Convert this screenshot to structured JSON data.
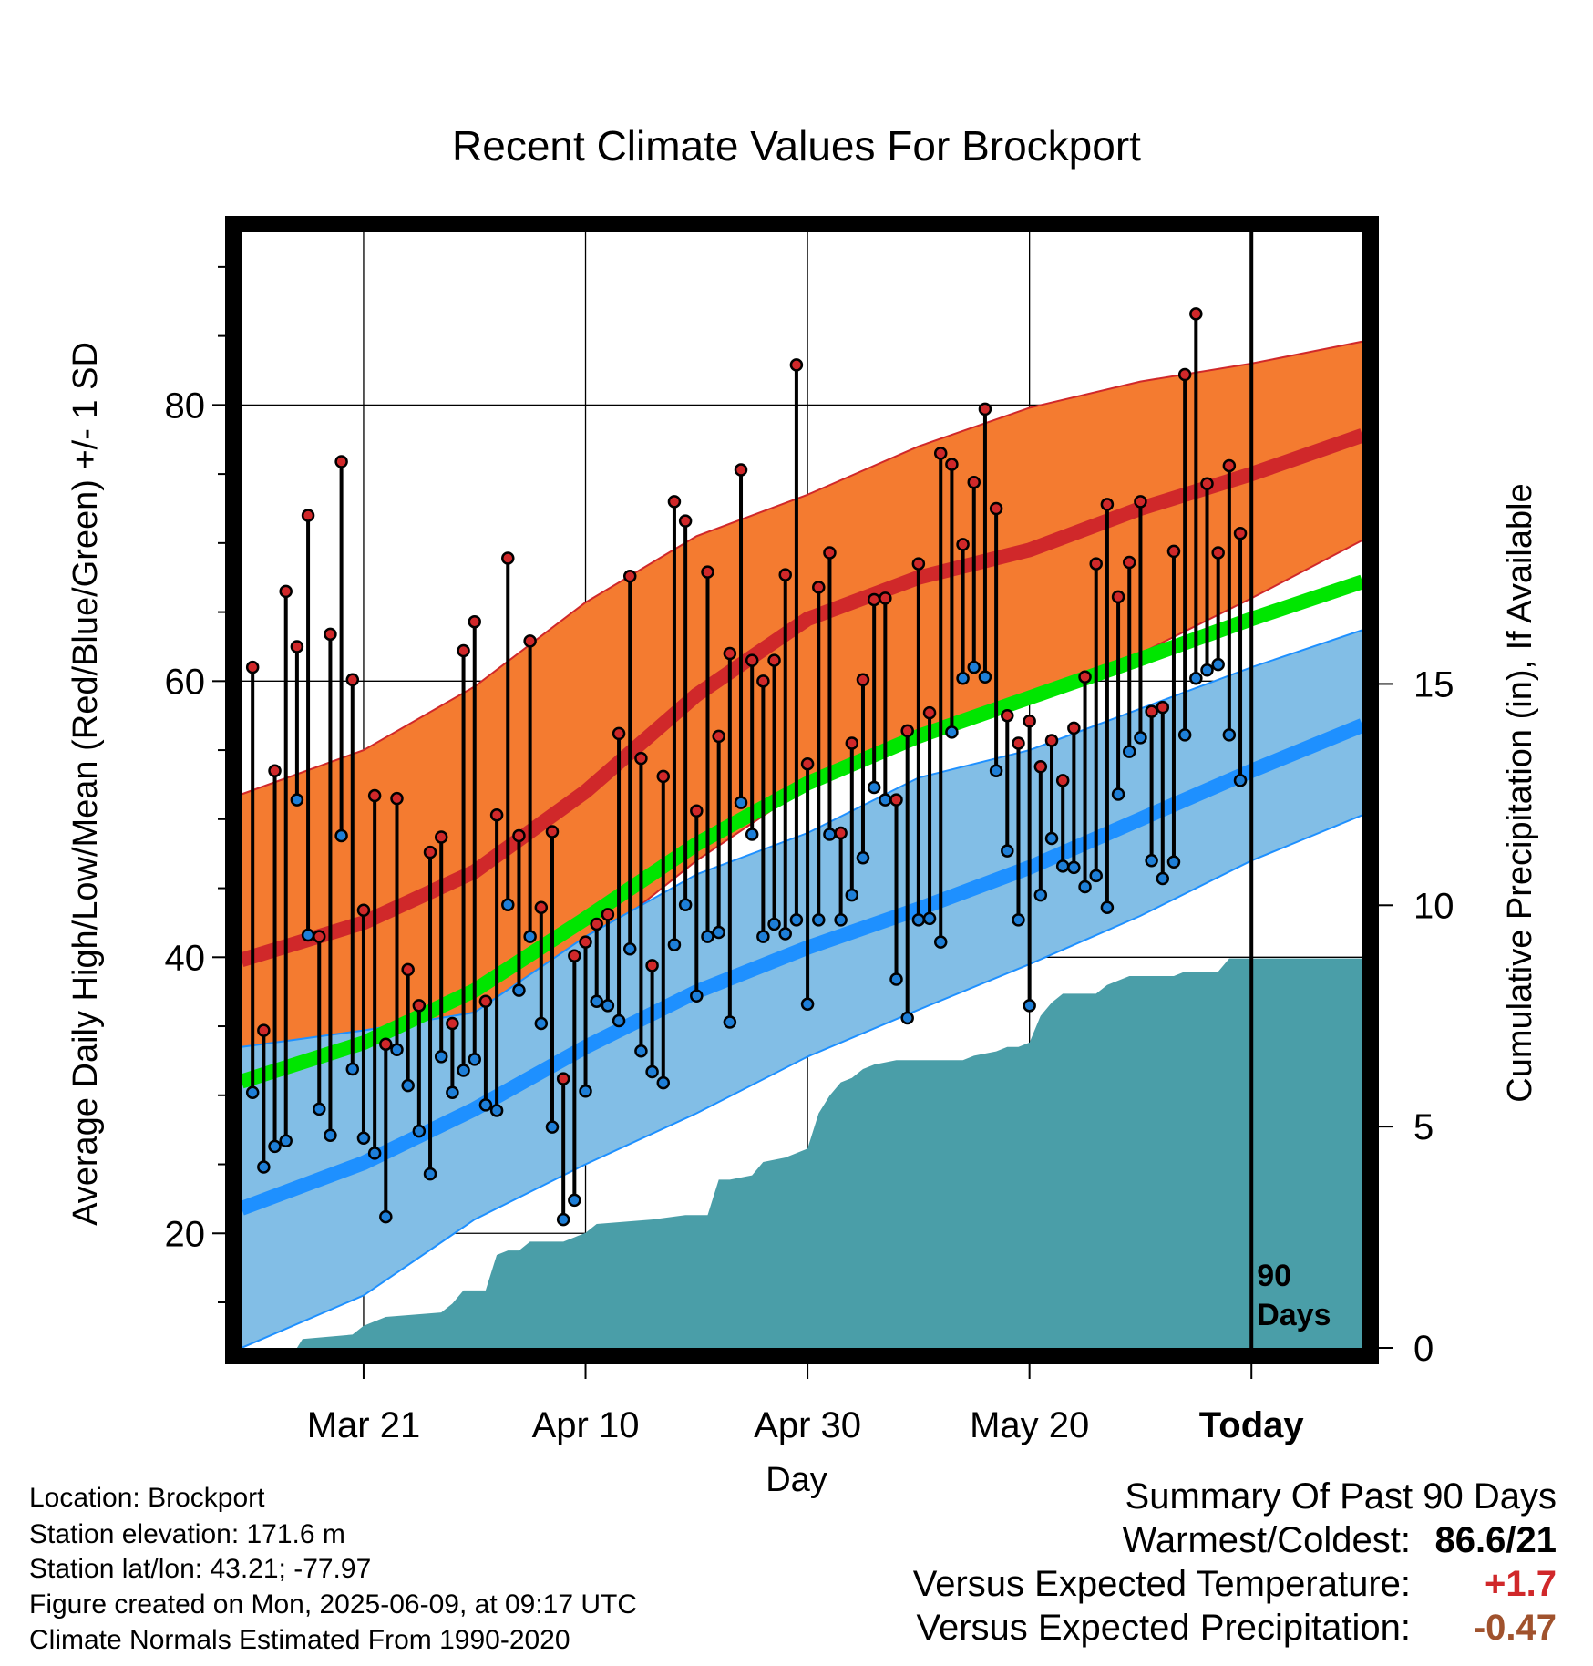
{
  "chart_data": {
    "type": "line",
    "title": "Recent Climate Values For Brockport",
    "xlabel": "Day",
    "ylabel": "Average Daily High/Low/Mean (Red/Blue/Green) +/- 1 SD",
    "y2label": "Cumulative Precipitation (in), If Available",
    "x_tick_labels": [
      "Mar 21",
      "Apr 10",
      "Apr 30",
      "May 20",
      "Today"
    ],
    "x_tick_days": [
      10,
      30,
      50,
      70,
      90
    ],
    "x_range_days": [
      -1,
      100
    ],
    "ylim": [
      11.7,
      92.5
    ],
    "y_ticks": [
      20,
      40,
      60,
      80
    ],
    "y2lim": [
      0,
      25.2
    ],
    "y2_ticks": [
      0,
      5,
      10,
      15
    ],
    "today_marker": "90\nDays",
    "today_label_line1": "90",
    "today_label_line2": "Days",
    "grid": true,
    "colors": {
      "high_band": "#f47b30",
      "high_mean": "#d0282a",
      "low_band": "#82bee6",
      "low_mean": "#1e90ff",
      "mean_normal": "#00e600",
      "precip": "#4a9ea8",
      "high_point": "#d0282a",
      "low_point": "#1e7fd8"
    },
    "normal_high_mean": [
      [
        -1,
        39.8
      ],
      [
        10,
        42.5
      ],
      [
        20,
        46.2
      ],
      [
        30,
        52
      ],
      [
        40,
        59
      ],
      [
        50,
        64.5
      ],
      [
        60,
        67.5
      ],
      [
        70,
        69.5
      ],
      [
        80,
        72.5
      ],
      [
        90,
        75
      ],
      [
        100,
        77.8
      ]
    ],
    "normal_high_upper": [
      [
        -1,
        51.8
      ],
      [
        10,
        55
      ],
      [
        20,
        59.6
      ],
      [
        30,
        65.7
      ],
      [
        40,
        70.5
      ],
      [
        50,
        73.5
      ],
      [
        60,
        77
      ],
      [
        70,
        79.8
      ],
      [
        80,
        81.7
      ],
      [
        90,
        83
      ],
      [
        100,
        84.6
      ]
    ],
    "normal_high_lower": [
      [
        -1,
        28.7
      ],
      [
        10,
        32.5
      ],
      [
        20,
        35.4
      ],
      [
        30,
        40.6
      ],
      [
        40,
        47
      ],
      [
        50,
        52.4
      ],
      [
        60,
        55.5
      ],
      [
        70,
        58.8
      ],
      [
        80,
        62
      ],
      [
        90,
        66
      ],
      [
        100,
        70.2
      ]
    ],
    "normal_low_mean": [
      [
        -1,
        21.8
      ],
      [
        10,
        25.1
      ],
      [
        20,
        29
      ],
      [
        30,
        33.5
      ],
      [
        40,
        37.5
      ],
      [
        50,
        40.7
      ],
      [
        60,
        43.5
      ],
      [
        70,
        46.5
      ],
      [
        80,
        50
      ],
      [
        90,
        53.5
      ],
      [
        100,
        56.8
      ]
    ],
    "normal_low_upper": [
      [
        -1,
        33.5
      ],
      [
        10,
        34.7
      ],
      [
        20,
        36
      ],
      [
        30,
        41.5
      ],
      [
        40,
        46
      ],
      [
        50,
        49
      ],
      [
        60,
        53
      ],
      [
        70,
        55
      ],
      [
        80,
        58
      ],
      [
        90,
        61
      ],
      [
        100,
        63.7
      ]
    ],
    "normal_low_lower": [
      [
        -1,
        11.7
      ],
      [
        10,
        15.5
      ],
      [
        20,
        21
      ],
      [
        30,
        25
      ],
      [
        40,
        28.7
      ],
      [
        50,
        32.8
      ],
      [
        60,
        36.2
      ],
      [
        70,
        39.5
      ],
      [
        80,
        43
      ],
      [
        90,
        47
      ],
      [
        100,
        50.3
      ]
    ],
    "normal_mean": [
      [
        -1,
        31
      ],
      [
        10,
        33.8
      ],
      [
        20,
        37.6
      ],
      [
        30,
        42.8
      ],
      [
        40,
        48.2
      ],
      [
        50,
        52.6
      ],
      [
        60,
        56
      ],
      [
        70,
        58.8
      ],
      [
        80,
        61.6
      ],
      [
        90,
        64.5
      ],
      [
        100,
        67.2
      ]
    ],
    "daily": {
      "high": [
        61,
        34.7,
        53.5,
        66.5,
        62.5,
        72,
        41.5,
        63.4,
        75.9,
        60.1,
        43.4,
        51.7,
        33.7,
        51.5,
        39.1,
        36.5,
        47.6,
        48.7,
        35.2,
        62.2,
        64.3,
        36.8,
        50.3,
        68.9,
        48.8,
        62.9,
        43.6,
        49.1,
        31.2,
        40.1,
        41.1,
        42.4,
        43.1,
        56.2,
        67.6,
        54.4,
        39.4,
        53.1,
        73,
        71.6,
        50.6,
        67.9,
        56,
        62,
        75.3,
        61.5,
        60,
        61.5,
        67.7,
        82.9,
        54,
        66.8,
        69.3,
        49,
        55.5,
        60.1,
        65.9,
        66,
        51.4,
        56.4,
        68.5,
        57.7,
        76.5,
        75.7,
        69.9,
        74.4,
        79.7,
        72.5,
        57.5,
        55.5,
        57.1,
        53.8,
        55.7,
        52.8,
        56.6,
        60.3,
        68.5,
        72.8,
        66.1,
        68.6,
        73,
        57.8,
        58.1,
        69.4,
        82.2,
        86.6,
        74.3,
        69.3,
        75.6,
        70.7
      ],
      "low": [
        30.2,
        24.8,
        26.3,
        26.7,
        51.4,
        41.6,
        29,
        27.1,
        48.8,
        31.9,
        26.9,
        25.8,
        21.2,
        33.3,
        30.7,
        27.4,
        24.3,
        32.8,
        30.2,
        31.8,
        32.6,
        29.3,
        28.9,
        43.8,
        37.6,
        41.5,
        35.2,
        27.7,
        21,
        22.4,
        30.3,
        36.8,
        36.5,
        35.4,
        40.6,
        33.2,
        31.7,
        30.9,
        40.9,
        43.8,
        37.2,
        41.5,
        41.8,
        35.3,
        51.2,
        48.9,
        41.5,
        42.4,
        41.7,
        42.7,
        36.6,
        42.7,
        48.9,
        42.7,
        44.5,
        47.2,
        52.3,
        51.4,
        38.4,
        35.6,
        42.7,
        42.8,
        41.1,
        56.3,
        60.2,
        61,
        60.3,
        53.5,
        47.7,
        42.7,
        36.5,
        44.5,
        48.6,
        46.6,
        46.5,
        45.1,
        45.9,
        43.6,
        51.8,
        54.9,
        55.9,
        47,
        45.7,
        46.9,
        56.1,
        60.2,
        60.8,
        61.2,
        56.1,
        52.8
      ]
    },
    "precip_cumulative": [
      [
        -1,
        0
      ],
      [
        4,
        0
      ],
      [
        4.5,
        0.2
      ],
      [
        9,
        0.3
      ],
      [
        10,
        0.5
      ],
      [
        12,
        0.7
      ],
      [
        17,
        0.8
      ],
      [
        18,
        1.0
      ],
      [
        19,
        1.3
      ],
      [
        21,
        1.3
      ],
      [
        22,
        2.1
      ],
      [
        23,
        2.2
      ],
      [
        24,
        2.2
      ],
      [
        25,
        2.4
      ],
      [
        28,
        2.4
      ],
      [
        29,
        2.5
      ],
      [
        30,
        2.6
      ],
      [
        31,
        2.8
      ],
      [
        36,
        2.9
      ],
      [
        39,
        3.0
      ],
      [
        41,
        3.0
      ],
      [
        42,
        3.8
      ],
      [
        43,
        3.8
      ],
      [
        45,
        3.9
      ],
      [
        46,
        4.2
      ],
      [
        48,
        4.3
      ],
      [
        50,
        4.5
      ],
      [
        51,
        5.3
      ],
      [
        52,
        5.7
      ],
      [
        53,
        6.0
      ],
      [
        54,
        6.1
      ],
      [
        55,
        6.3
      ],
      [
        56,
        6.4
      ],
      [
        58,
        6.5
      ],
      [
        64,
        6.5
      ],
      [
        65,
        6.6
      ],
      [
        67,
        6.7
      ],
      [
        68,
        6.8
      ],
      [
        69,
        6.8
      ],
      [
        70,
        6.9
      ],
      [
        71,
        7.5
      ],
      [
        72,
        7.8
      ],
      [
        73,
        8.0
      ],
      [
        76,
        8.0
      ],
      [
        77,
        8.2
      ],
      [
        78,
        8.3
      ],
      [
        79,
        8.4
      ],
      [
        81,
        8.4
      ],
      [
        83,
        8.4
      ],
      [
        84,
        8.5
      ],
      [
        87,
        8.5
      ],
      [
        88,
        8.8
      ],
      [
        90,
        8.8
      ],
      [
        100,
        8.8
      ]
    ]
  },
  "footer": {
    "location": "Location: Brockport",
    "elevation": "Station elevation: 171.6 m",
    "latlon": "Station lat/lon: 43.21; -77.97",
    "created": "Figure created on Mon, 2025-06-09, at 09:17 UTC",
    "normals": "Climate Normals Estimated From 1990-2020"
  },
  "summary": {
    "heading": "Summary Of Past 90 Days",
    "warmest_coldest_label": "Warmest/Coldest:",
    "warmest_coldest_value": "86.6/21",
    "temp_label": "Versus Expected Temperature:",
    "temp_value": "+1.7",
    "precip_label": "Versus Expected Precipitation:",
    "precip_value": "-0.47",
    "colors": {
      "temp_value": "#d0282a",
      "precip_value": "#a0522d"
    }
  }
}
